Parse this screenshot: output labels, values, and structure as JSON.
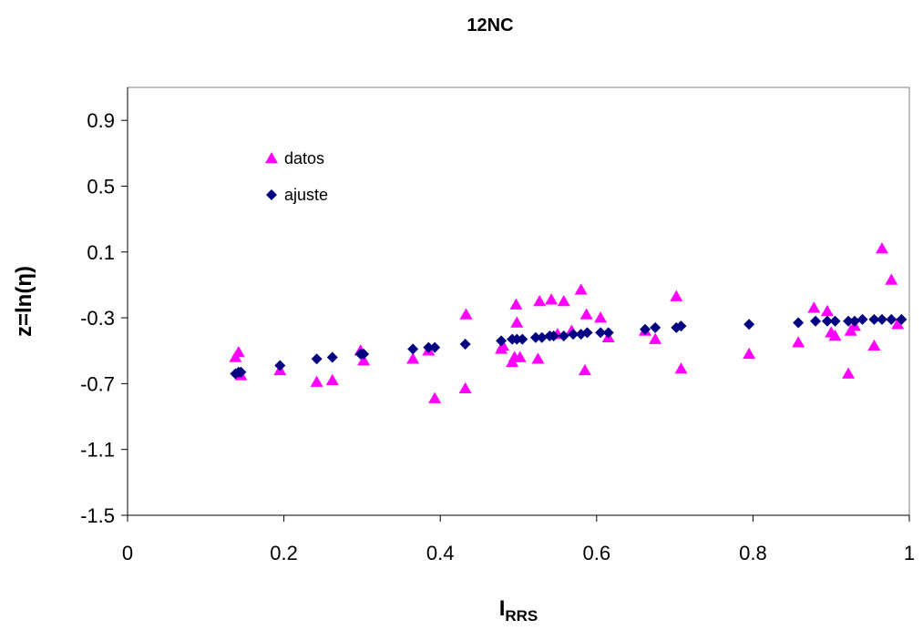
{
  "chart_data": {
    "type": "scatter",
    "title": "12NC",
    "xlabel": {
      "main": "I",
      "subscript": "RRS"
    },
    "ylabel": "z=ln(η)",
    "xlim": [
      0,
      1
    ],
    "ylim": [
      -1.5,
      1.1
    ],
    "x_ticks": [
      0,
      0.2,
      0.4,
      0.6,
      0.8,
      1
    ],
    "x_tick_labels": [
      "0",
      "0.2",
      "0.4",
      "0.6",
      "0.8",
      "1"
    ],
    "y_ticks": [
      -1.5,
      -1.1,
      -0.7,
      -0.3,
      0.1,
      0.5,
      0.9
    ],
    "y_tick_labels": [
      "-1.5",
      "-1.1",
      "-0.7",
      "-0.3",
      "0.1",
      "0.5",
      "0.9"
    ],
    "grid": false,
    "legend_position": "top-left",
    "series": [
      {
        "name": "datos",
        "marker": "triangle",
        "color": "#ff00ff",
        "points": [
          [
            0.138,
            -0.54
          ],
          [
            0.142,
            -0.51
          ],
          [
            0.145,
            -0.65
          ],
          [
            0.195,
            -0.62
          ],
          [
            0.242,
            -0.69
          ],
          [
            0.262,
            -0.68
          ],
          [
            0.298,
            -0.5
          ],
          [
            0.302,
            -0.56
          ],
          [
            0.365,
            -0.55
          ],
          [
            0.385,
            -0.5
          ],
          [
            0.393,
            -0.79
          ],
          [
            0.432,
            -0.73
          ],
          [
            0.433,
            -0.28
          ],
          [
            0.478,
            -0.49
          ],
          [
            0.48,
            -0.47
          ],
          [
            0.492,
            -0.57
          ],
          [
            0.495,
            -0.54
          ],
          [
            0.497,
            -0.22
          ],
          [
            0.498,
            -0.33
          ],
          [
            0.502,
            -0.54
          ],
          [
            0.525,
            -0.55
          ],
          [
            0.527,
            -0.2
          ],
          [
            0.542,
            -0.19
          ],
          [
            0.55,
            -0.4
          ],
          [
            0.558,
            -0.2
          ],
          [
            0.568,
            -0.38
          ],
          [
            0.58,
            -0.13
          ],
          [
            0.585,
            -0.62
          ],
          [
            0.587,
            -0.28
          ],
          [
            0.605,
            -0.3
          ],
          [
            0.615,
            -0.42
          ],
          [
            0.662,
            -0.38
          ],
          [
            0.675,
            -0.43
          ],
          [
            0.702,
            -0.17
          ],
          [
            0.708,
            -0.61
          ],
          [
            0.795,
            -0.52
          ],
          [
            0.858,
            -0.45
          ],
          [
            0.878,
            -0.24
          ],
          [
            0.895,
            -0.26
          ],
          [
            0.9,
            -0.39
          ],
          [
            0.905,
            -0.41
          ],
          [
            0.922,
            -0.64
          ],
          [
            0.925,
            -0.38
          ],
          [
            0.93,
            -0.35
          ],
          [
            0.955,
            -0.47
          ],
          [
            0.965,
            0.12
          ],
          [
            0.977,
            -0.07
          ],
          [
            0.985,
            -0.34
          ]
        ]
      },
      {
        "name": "ajuste",
        "marker": "diamond",
        "color": "#000080",
        "points": [
          [
            0.138,
            -0.64
          ],
          [
            0.142,
            -0.63
          ],
          [
            0.145,
            -0.63
          ],
          [
            0.195,
            -0.59
          ],
          [
            0.242,
            -0.55
          ],
          [
            0.262,
            -0.54
          ],
          [
            0.298,
            -0.52
          ],
          [
            0.302,
            -0.52
          ],
          [
            0.365,
            -0.49
          ],
          [
            0.385,
            -0.48
          ],
          [
            0.393,
            -0.48
          ],
          [
            0.432,
            -0.46
          ],
          [
            0.478,
            -0.44
          ],
          [
            0.492,
            -0.43
          ],
          [
            0.498,
            -0.43
          ],
          [
            0.505,
            -0.43
          ],
          [
            0.522,
            -0.42
          ],
          [
            0.53,
            -0.42
          ],
          [
            0.54,
            -0.41
          ],
          [
            0.545,
            -0.41
          ],
          [
            0.558,
            -0.41
          ],
          [
            0.57,
            -0.4
          ],
          [
            0.58,
            -0.4
          ],
          [
            0.588,
            -0.39
          ],
          [
            0.605,
            -0.39
          ],
          [
            0.615,
            -0.39
          ],
          [
            0.662,
            -0.37
          ],
          [
            0.675,
            -0.36
          ],
          [
            0.702,
            -0.36
          ],
          [
            0.708,
            -0.35
          ],
          [
            0.795,
            -0.34
          ],
          [
            0.858,
            -0.33
          ],
          [
            0.88,
            -0.32
          ],
          [
            0.895,
            -0.32
          ],
          [
            0.905,
            -0.32
          ],
          [
            0.922,
            -0.32
          ],
          [
            0.93,
            -0.32
          ],
          [
            0.94,
            -0.31
          ],
          [
            0.955,
            -0.31
          ],
          [
            0.965,
            -0.31
          ],
          [
            0.977,
            -0.31
          ],
          [
            0.99,
            -0.31
          ]
        ]
      }
    ]
  }
}
